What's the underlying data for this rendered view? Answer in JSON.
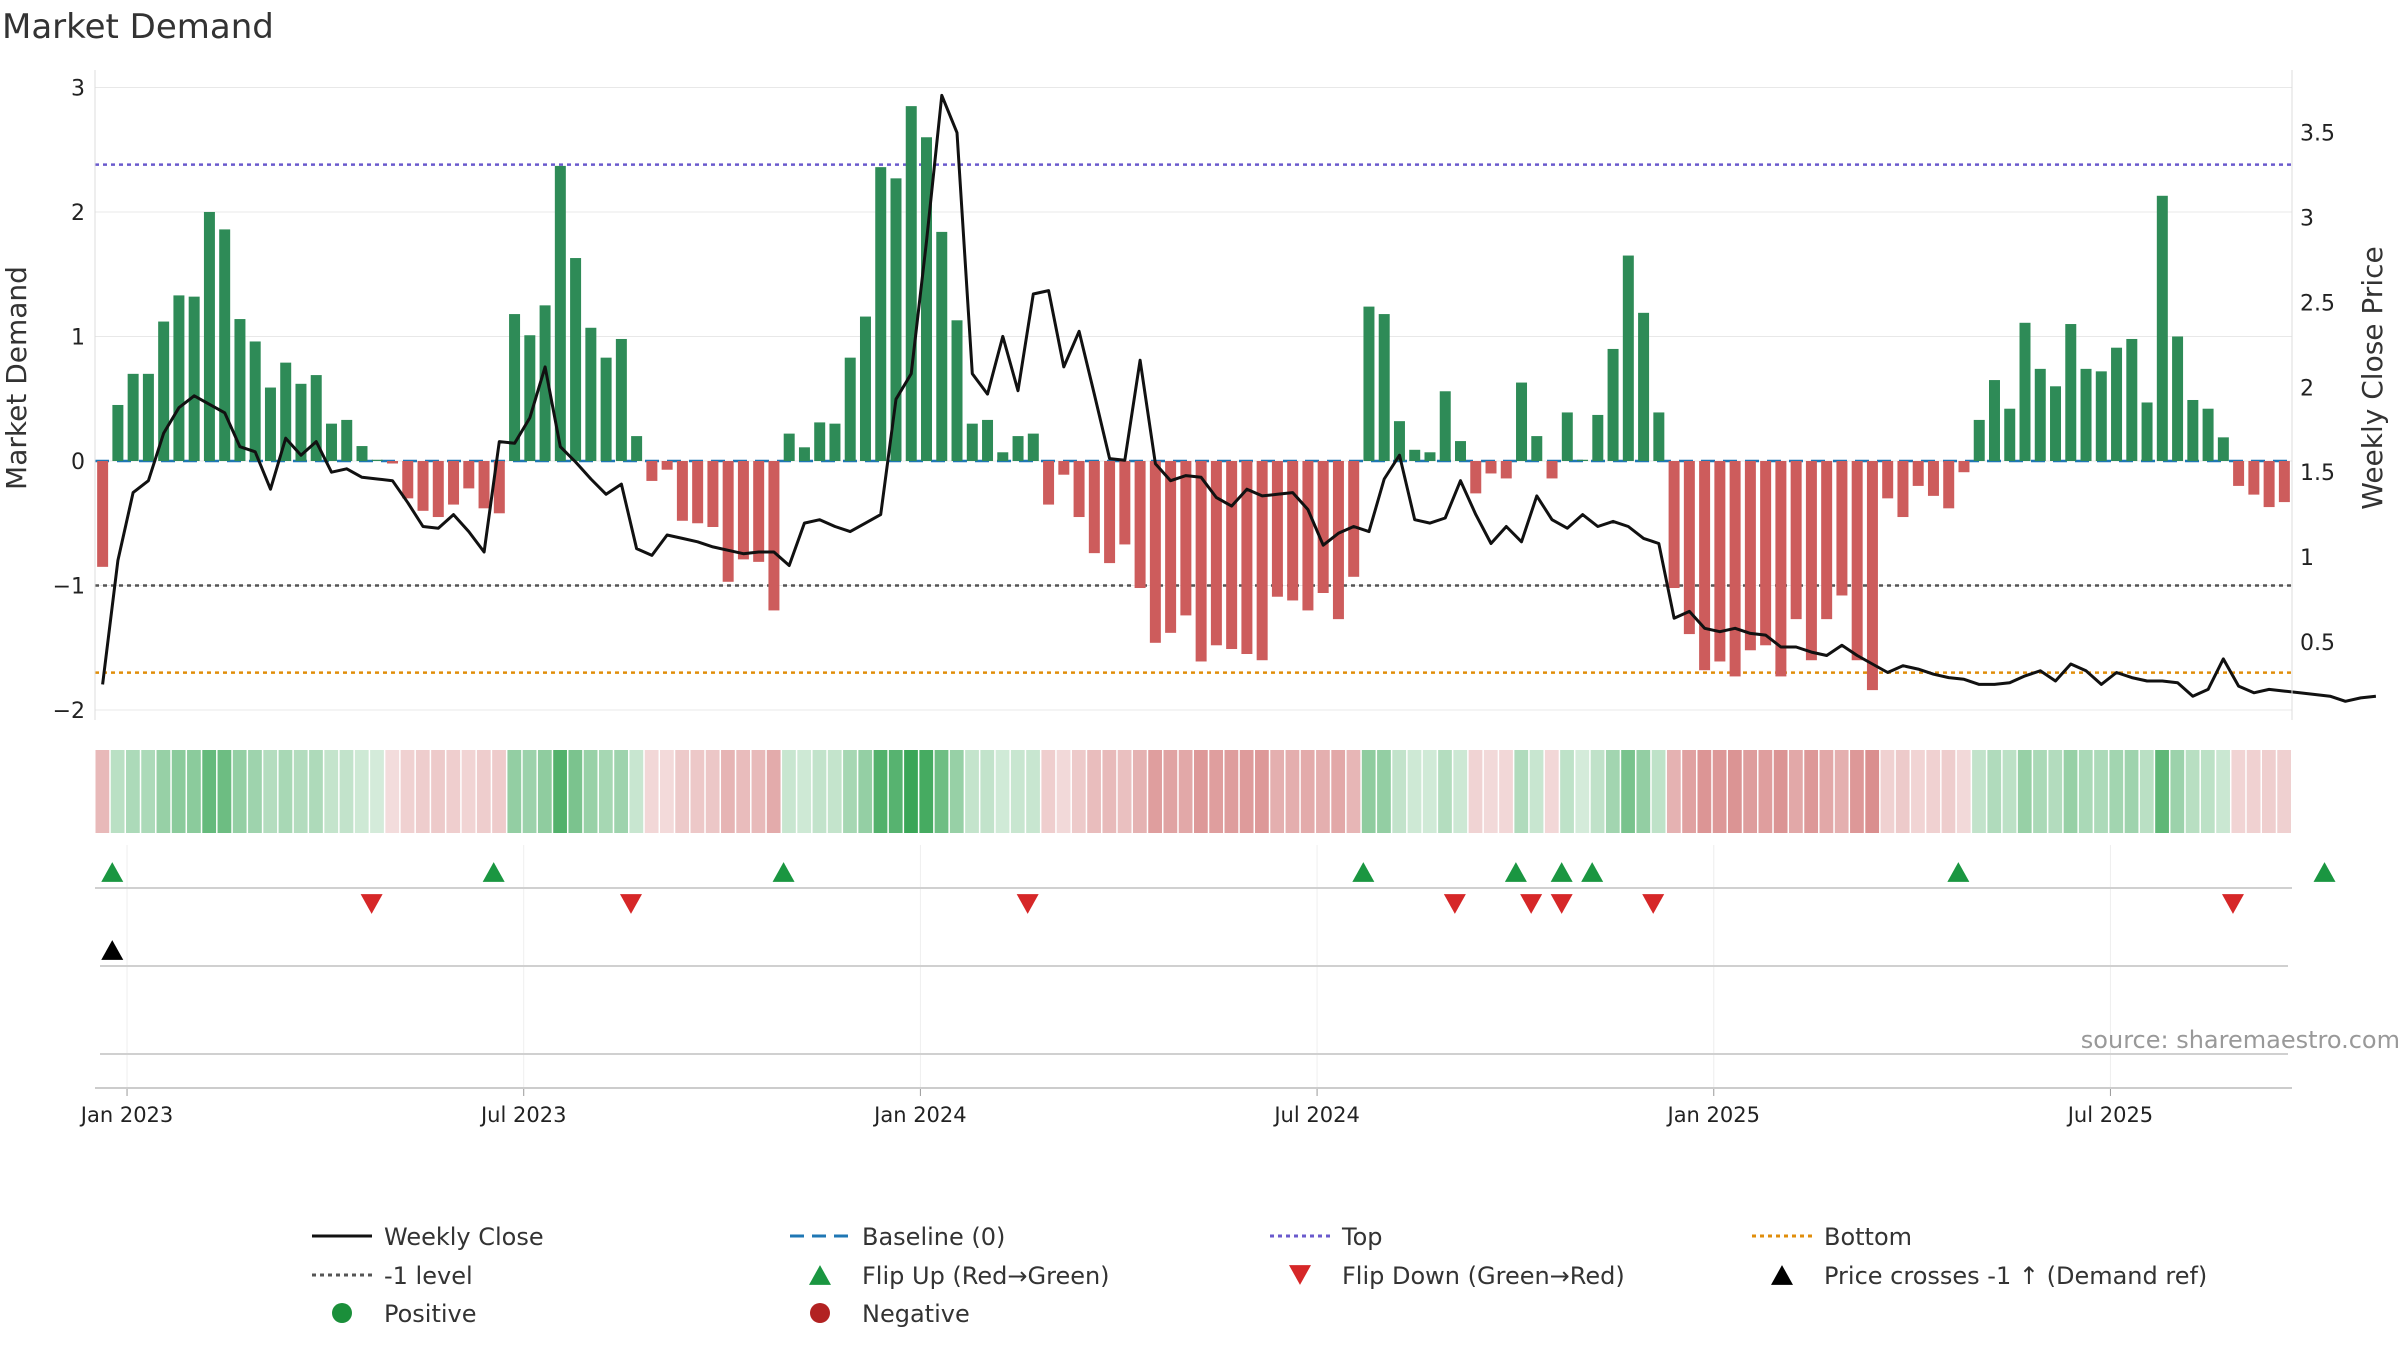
{
  "chart_data": {
    "type": "bar",
    "title": "Market Demand",
    "ylabel": "Market Demand",
    "y2label": "Weekly Close Price",
    "ylim": [
      -2.08,
      3.1
    ],
    "y2lim": [
      0.04,
      3.84
    ],
    "yticks": [
      "3",
      "2",
      "1",
      "0",
      "−1",
      "−2"
    ],
    "y2ticks": [
      "3.5",
      "3",
      "2.5",
      "2",
      "1.5",
      "1",
      "0.5"
    ],
    "xticks": [
      "Jan 2023",
      "Jul 2023",
      "Jan 2024",
      "Jul 2024",
      "Jan 2025",
      "Jul 2025"
    ],
    "reference_lines": {
      "top": 2.38,
      "bottom": -1.7,
      "minus_one": -1,
      "baseline": 0
    },
    "colors": {
      "positive": "#2e8b57",
      "negative": "#cd5c5c",
      "line": "#111111",
      "top": "#6a5acd",
      "bottom": "#e08e0b",
      "minus_one": "#555555",
      "baseline": "#1f77b4",
      "flip_up": "#1a9641",
      "flip_down": "#d62728"
    },
    "series": [
      {
        "name": "Market Demand",
        "values": [
          -0.85,
          0.45,
          0.7,
          0.7,
          1.12,
          1.33,
          1.32,
          2.0,
          1.86,
          1.14,
          0.96,
          0.59,
          0.79,
          0.62,
          0.69,
          0.3,
          0.33,
          0.12,
          0.01,
          -0.02,
          -0.3,
          -0.4,
          -0.45,
          -0.35,
          -0.22,
          -0.38,
          -0.42,
          1.18,
          1.01,
          1.25,
          2.37,
          1.63,
          1.07,
          0.83,
          0.98,
          0.2,
          -0.16,
          -0.07,
          -0.48,
          -0.5,
          -0.53,
          -0.97,
          -0.79,
          -0.81,
          -1.2,
          0.22,
          0.11,
          0.31,
          0.3,
          0.83,
          1.16,
          2.36,
          2.27,
          2.85,
          2.6,
          1.84,
          1.13,
          0.3,
          0.33,
          0.07,
          0.2,
          0.22,
          -0.35,
          -0.11,
          -0.45,
          -0.74,
          -0.82,
          -0.67,
          -1.02,
          -1.46,
          -1.38,
          -1.24,
          -1.61,
          -1.48,
          -1.51,
          -1.55,
          -1.6,
          -1.09,
          -1.12,
          -1.2,
          -1.06,
          -1.27,
          -0.93,
          1.24,
          1.18,
          0.32,
          0.09,
          0.07,
          0.56,
          0.16,
          -0.26,
          -0.1,
          -0.14,
          0.63,
          0.2,
          -0.14,
          0.39,
          0.01,
          0.37,
          0.9,
          1.65,
          1.19,
          0.39,
          -1.02,
          -1.39,
          -1.68,
          -1.61,
          -1.73,
          -1.52,
          -1.48,
          -1.73,
          -1.27,
          -1.6,
          -1.27,
          -1.08,
          -1.6,
          -1.84,
          -0.3,
          -0.45,
          -0.2,
          -0.28,
          -0.38,
          -0.09,
          0.33,
          0.65,
          0.42,
          1.11,
          0.74,
          0.6,
          1.1,
          0.74,
          0.72,
          0.91,
          0.98,
          0.47,
          2.13,
          1.0,
          0.49,
          0.42,
          0.19,
          -0.2,
          -0.27,
          -0.37,
          -0.33
        ]
      },
      {
        "name": "Weekly Close",
        "values": [
          0.25,
          0.98,
          1.38,
          1.45,
          1.73,
          1.88,
          1.95,
          1.9,
          1.85,
          1.65,
          1.62,
          1.4,
          1.7,
          1.6,
          1.68,
          1.5,
          1.52,
          1.47,
          1.46,
          1.45,
          1.32,
          1.18,
          1.17,
          1.25,
          1.15,
          1.03,
          1.68,
          1.67,
          1.82,
          2.12,
          1.65,
          1.56,
          1.46,
          1.37,
          1.43,
          1.05,
          1.01,
          1.13,
          1.11,
          1.09,
          1.06,
          1.04,
          1.02,
          1.03,
          1.03,
          0.95,
          1.2,
          1.22,
          1.18,
          1.15,
          1.2,
          1.25,
          1.93,
          2.08,
          2.86,
          3.72,
          3.5,
          2.08,
          1.96,
          2.3,
          1.98,
          2.55,
          2.57,
          2.12,
          2.33,
          1.96,
          1.58,
          1.57,
          2.16,
          1.55,
          1.45,
          1.48,
          1.47,
          1.35,
          1.3,
          1.4,
          1.36,
          1.37,
          1.38,
          1.28,
          1.07,
          1.14,
          1.18,
          1.15,
          1.46,
          1.6,
          1.22,
          1.2,
          1.23,
          1.45,
          1.25,
          1.08,
          1.18,
          1.09,
          1.36,
          1.22,
          1.17,
          1.25,
          1.18,
          1.21,
          1.18,
          1.11,
          1.08,
          0.64,
          0.68,
          0.58,
          0.56,
          0.58,
          0.55,
          0.54,
          0.47,
          0.47,
          0.44,
          0.42,
          0.48,
          0.42,
          0.37,
          0.32,
          0.36,
          0.34,
          0.31,
          0.29,
          0.28,
          0.25,
          0.25,
          0.26,
          0.3,
          0.33,
          0.27,
          0.37,
          0.33,
          0.25,
          0.32,
          0.29,
          0.27,
          0.27,
          0.26,
          0.18,
          0.22,
          0.4,
          0.24,
          0.2,
          0.22,
          0.21,
          0.2,
          0.19,
          0.18,
          0.15,
          0.17,
          0.18
        ]
      }
    ],
    "flip_up_indices": [
      1,
      26,
      45,
      83,
      93,
      96,
      98,
      122,
      146
    ],
    "flip_down_indices": [
      18,
      35,
      61,
      89,
      94,
      96,
      102,
      140
    ],
    "price_cross_indices": [
      1
    ],
    "legend": [
      {
        "label": "Weekly Close",
        "marker": "line",
        "color": "#111111"
      },
      {
        "label": "Baseline (0)",
        "marker": "dash",
        "color": "#1f77b4"
      },
      {
        "label": "Top",
        "marker": "dot",
        "color": "#6a5acd"
      },
      {
        "label": "Bottom",
        "marker": "dot",
        "color": "#e08e0b"
      },
      {
        "label": "-1 level",
        "marker": "dot",
        "color": "#555555"
      },
      {
        "label": "Flip Up (Red→Green)",
        "marker": "tri-up",
        "color": "#1a9641"
      },
      {
        "label": "Flip Down (Green→Red)",
        "marker": "tri-down",
        "color": "#d62728"
      },
      {
        "label": "Price crosses -1 ↑ (Demand ref)",
        "marker": "tri-up",
        "color": "#000000"
      },
      {
        "label": "Positive",
        "marker": "circle",
        "color": "#1a8f3a"
      },
      {
        "label": "Negative",
        "marker": "circle",
        "color": "#b22222"
      }
    ]
  },
  "source": "source: sharemaestro.com"
}
